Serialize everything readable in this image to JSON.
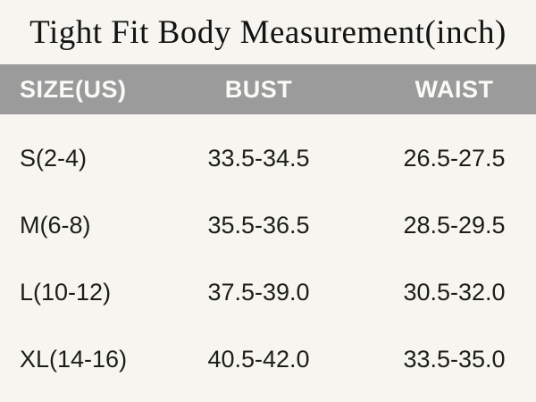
{
  "title": "Tight Fit Body Measurement(inch)",
  "table": {
    "headers": [
      "SIZE(US)",
      "BUST",
      "WAIST"
    ],
    "rows": [
      {
        "size": "S(2-4)",
        "bust": "33.5-34.5",
        "waist": "26.5-27.5"
      },
      {
        "size": "M(6-8)",
        "bust": "35.5-36.5",
        "waist": "28.5-29.5"
      },
      {
        "size": "L(10-12)",
        "bust": "37.5-39.0",
        "waist": "30.5-32.0"
      },
      {
        "size": "XL(14-16)",
        "bust": "40.5-42.0",
        "waist": "33.5-35.0"
      }
    ]
  },
  "colors": {
    "background": "#f6f5ef",
    "header_background": "#9b9b9b",
    "header_text": "#fbfaf7",
    "title_text": "#131313",
    "row_text": "#1d1d1b"
  },
  "chart_data": {
    "type": "table",
    "title": "Tight Fit Body Measurement(inch)",
    "columns": [
      "SIZE(US)",
      "BUST",
      "WAIST"
    ],
    "rows": [
      [
        "S(2-4)",
        "33.5-34.5",
        "26.5-27.5"
      ],
      [
        "M(6-8)",
        "35.5-36.5",
        "28.5-29.5"
      ],
      [
        "L(10-12)",
        "37.5-39.0",
        "30.5-32.0"
      ],
      [
        "XL(14-16)",
        "40.5-42.0",
        "33.5-35.0"
      ]
    ],
    "units": "inch",
    "layout": "title above; gray header band; left-aligned size column, centered measurement columns"
  }
}
